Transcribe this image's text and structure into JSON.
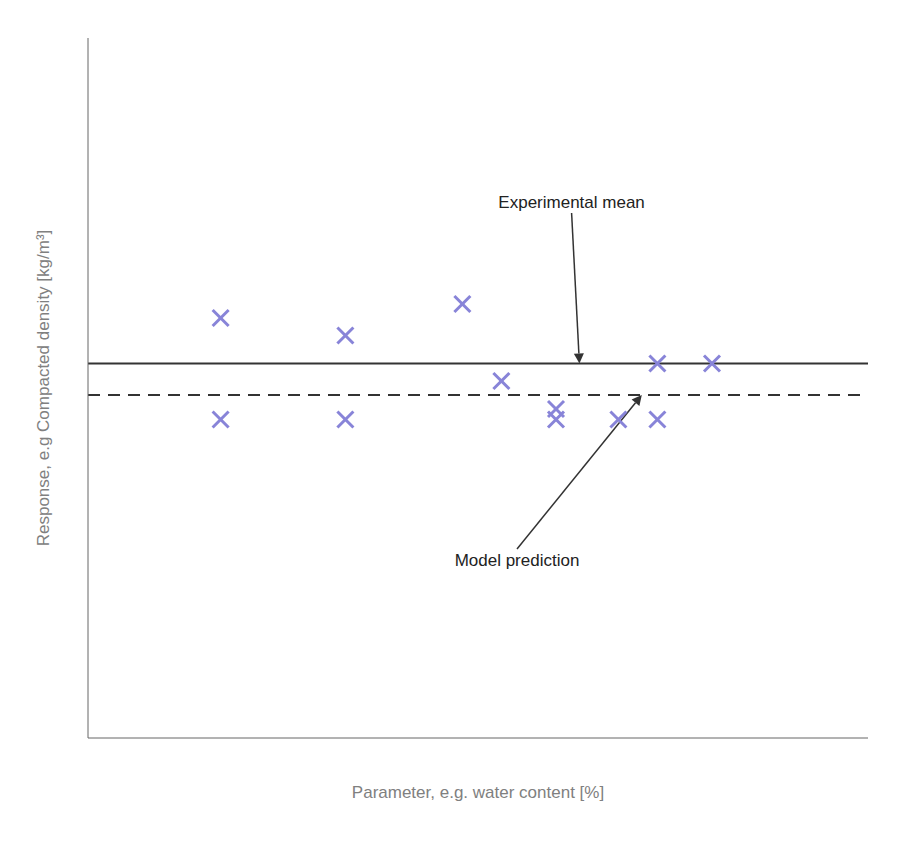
{
  "chart_data": {
    "type": "scatter",
    "xlabel": "Parameter, e.g. water content [%]",
    "ylabel": "Response,  e.g Compacted density [kg/m³]",
    "x": [
      0.17,
      0.17,
      0.33,
      0.33,
      0.48,
      0.53,
      0.6,
      0.6,
      0.68,
      0.73,
      0.73,
      0.8
    ],
    "values": [
      0.6,
      0.455,
      0.575,
      0.455,
      0.62,
      0.51,
      0.455,
      0.47,
      0.455,
      0.535,
      0.455,
      0.535
    ],
    "marker": "x",
    "xlim": [
      0.0,
      1.0
    ],
    "ylim": [
      0.0,
      1.0
    ],
    "tick_labels": false,
    "hlines": [
      {
        "y": 0.535,
        "line_style": "solid"
      },
      {
        "y": 0.49,
        "line_style": "dashed"
      }
    ],
    "annotations": [
      {
        "text": "Experimental mean",
        "x": 0.63,
        "y": 0.535,
        "text_x": 0.62,
        "text_y": 0.75
      },
      {
        "text": "Model prediction",
        "x": 0.71,
        "y": 0.49,
        "text_x": 0.55,
        "text_y": 0.27
      }
    ]
  }
}
